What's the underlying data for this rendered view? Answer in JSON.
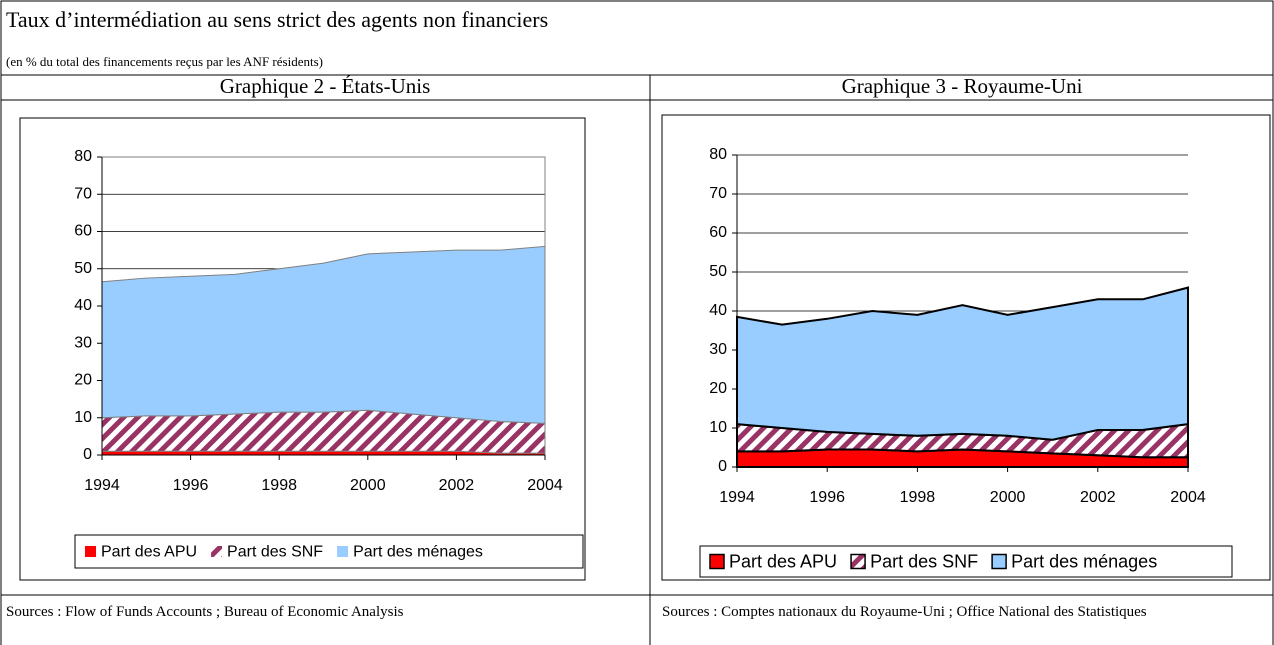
{
  "header": {
    "title": "Taux d’intermédiation au sens strict des agents non financiers",
    "subtitle": "(en % du total des financements reçus par les ANF résidents)"
  },
  "chart_data": [
    {
      "type": "area",
      "stacked": true,
      "title": "Graphique 2 - États-Unis",
      "x": [
        1994,
        1995,
        1996,
        1997,
        1998,
        1999,
        2000,
        2001,
        2002,
        2003,
        2004
      ],
      "xlim": [
        1994,
        2004
      ],
      "xticks": [
        1994,
        1996,
        1998,
        2000,
        2002,
        2004
      ],
      "ylim": [
        0,
        80
      ],
      "yticks": [
        0,
        10,
        20,
        30,
        40,
        50,
        60,
        70,
        80
      ],
      "grid": true,
      "legend_position": "bottom",
      "outline_color": "#808080",
      "series": [
        {
          "name": "Part des APU",
          "color": "#ff0000",
          "hatch": false,
          "values": [
            1,
            1,
            1,
            1,
            1,
            1,
            1,
            1,
            1,
            0.5,
            0.5
          ]
        },
        {
          "name": "Part des SNF",
          "color": "#993366",
          "hatch": true,
          "values": [
            9,
            9.5,
            9.5,
            10,
            10.5,
            10.5,
            11,
            10,
            9,
            8.5,
            8
          ]
        },
        {
          "name": "Part des ménages",
          "color": "#99ccff",
          "hatch": false,
          "values": [
            36.5,
            37,
            37.5,
            37.5,
            38.5,
            40,
            42,
            43.5,
            45,
            46,
            47.5
          ]
        }
      ],
      "source": "Sources : Flow of Funds Accounts ; Bureau of Economic Analysis"
    },
    {
      "type": "area",
      "stacked": true,
      "title": "Graphique 3 - Royaume-Uni",
      "x": [
        1994,
        1995,
        1996,
        1997,
        1998,
        1999,
        2000,
        2001,
        2002,
        2003,
        2004
      ],
      "xlim": [
        1994,
        2004
      ],
      "xticks": [
        1994,
        1996,
        1998,
        2000,
        2002,
        2004
      ],
      "ylim": [
        0,
        80
      ],
      "yticks": [
        0,
        10,
        20,
        30,
        40,
        50,
        60,
        70,
        80
      ],
      "grid": true,
      "legend_position": "bottom",
      "outline_color": "#000000",
      "series": [
        {
          "name": "Part des APU",
          "color": "#ff0000",
          "hatch": false,
          "values": [
            4,
            4,
            4.5,
            4.5,
            4,
            4.5,
            4,
            3.5,
            3,
            2.5,
            2.5
          ]
        },
        {
          "name": "Part des SNF",
          "color": "#993366",
          "hatch": true,
          "values": [
            7,
            6,
            4.5,
            4,
            4,
            4,
            4,
            3.5,
            6.5,
            7,
            8.5
          ]
        },
        {
          "name": "Part des ménages",
          "color": "#99ccff",
          "hatch": false,
          "values": [
            27.5,
            26.5,
            29,
            31.5,
            31,
            33,
            31,
            34,
            33.5,
            33.5,
            35
          ]
        }
      ],
      "source": "Sources : Comptes nationaux du Royaume-Uni ; Office National des Statistiques"
    }
  ]
}
